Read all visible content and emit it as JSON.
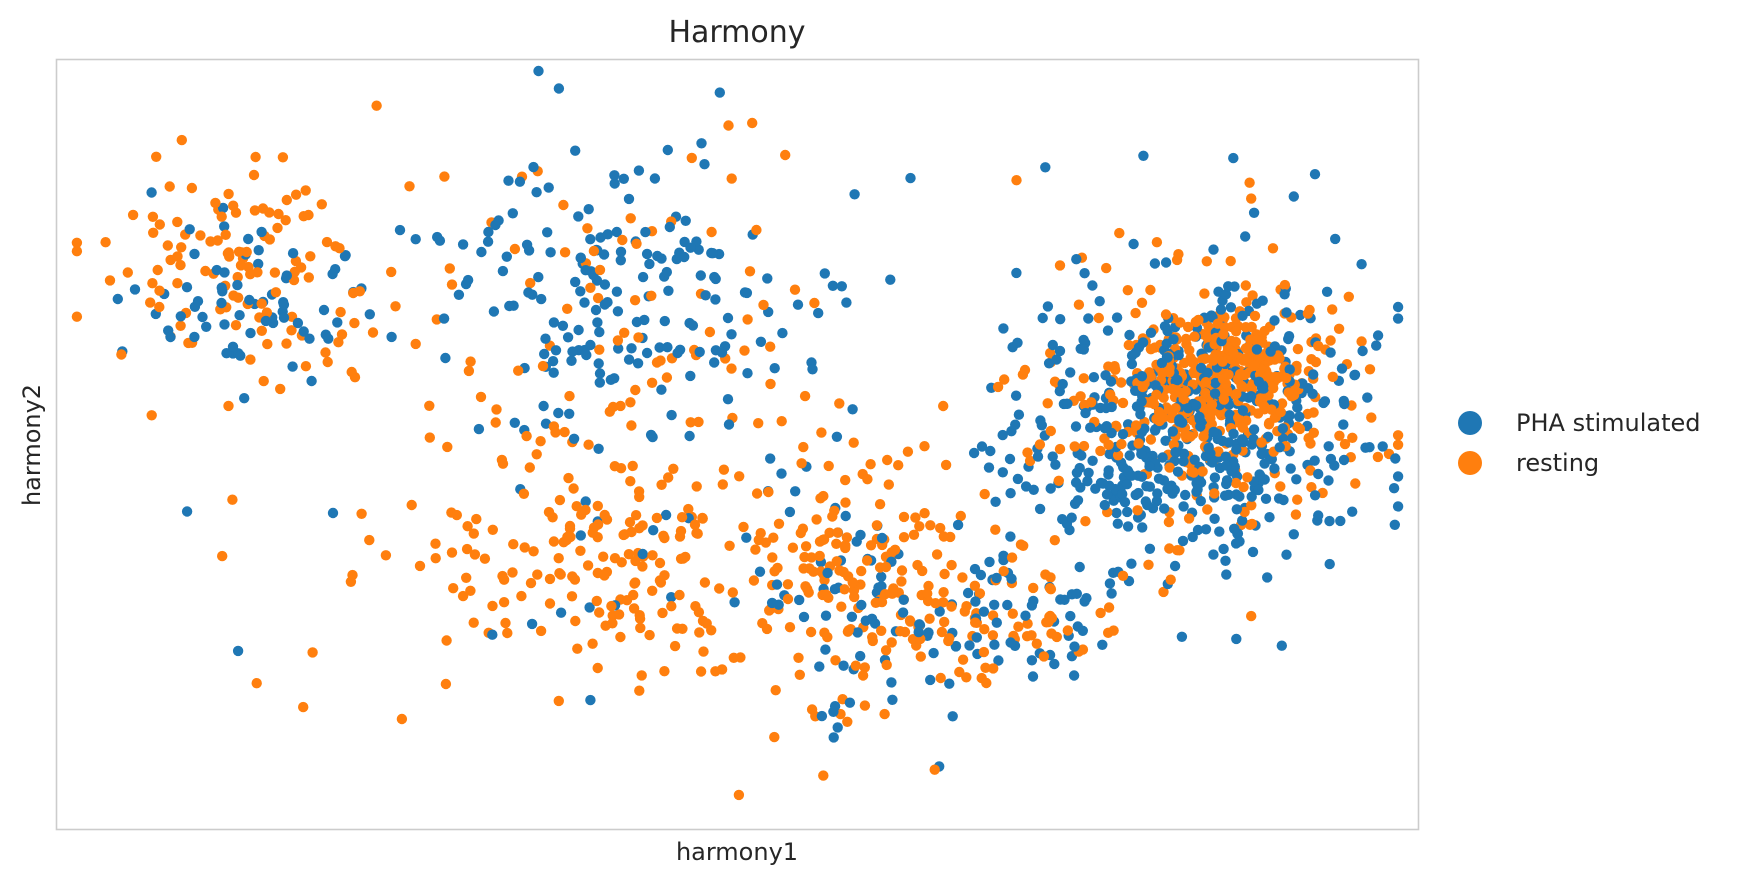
{
  "chart_data": {
    "type": "scatter",
    "title": "Harmony",
    "xlabel": "harmony1",
    "ylabel": "harmony2",
    "xlim": [
      0,
      1
    ],
    "ylim": [
      0,
      1
    ],
    "grid": false,
    "ticks_shown": false,
    "legend_placement": "right",
    "colors": {
      "PHA stimulated": "#1f77b4",
      "resting": "#ff7f0e",
      "frame": "#cccccc",
      "background": "#ffffff"
    },
    "clusters": [
      {
        "series": "PHA stimulated",
        "cx": 0.14,
        "cy": 0.69,
        "sx": 0.045,
        "sy": 0.06,
        "n": 70
      },
      {
        "series": "resting",
        "cx": 0.14,
        "cy": 0.72,
        "sx": 0.055,
        "sy": 0.065,
        "n": 110
      },
      {
        "series": "PHA stimulated",
        "cx": 0.41,
        "cy": 0.7,
        "sx": 0.065,
        "sy": 0.1,
        "n": 170
      },
      {
        "series": "resting",
        "cx": 0.4,
        "cy": 0.69,
        "sx": 0.07,
        "sy": 0.1,
        "n": 60
      },
      {
        "series": "resting",
        "cx": 0.4,
        "cy": 0.35,
        "sx": 0.055,
        "sy": 0.075,
        "n": 160
      },
      {
        "series": "PHA stimulated",
        "cx": 0.4,
        "cy": 0.36,
        "sx": 0.05,
        "sy": 0.06,
        "n": 12
      },
      {
        "series": "resting",
        "cx": 0.585,
        "cy": 0.32,
        "sx": 0.045,
        "sy": 0.075,
        "n": 170
      },
      {
        "series": "PHA stimulated",
        "cx": 0.58,
        "cy": 0.3,
        "sx": 0.04,
        "sy": 0.075,
        "n": 60
      },
      {
        "series": "PHA stimulated",
        "cx": 0.83,
        "cy": 0.53,
        "sx": 0.065,
        "sy": 0.09,
        "n": 540
      },
      {
        "series": "resting",
        "cx": 0.855,
        "cy": 0.59,
        "sx": 0.035,
        "sy": 0.045,
        "n": 260
      },
      {
        "series": "resting",
        "cx": 0.84,
        "cy": 0.55,
        "sx": 0.065,
        "sy": 0.09,
        "n": 230
      },
      {
        "series": "PHA stimulated",
        "cx": 0.7,
        "cy": 0.27,
        "sx": 0.04,
        "sy": 0.035,
        "n": 60
      },
      {
        "series": "resting",
        "cx": 0.7,
        "cy": 0.26,
        "sx": 0.04,
        "sy": 0.045,
        "n": 60
      },
      {
        "series": "resting",
        "cx": 0.45,
        "cy": 0.5,
        "sx": 0.21,
        "sy": 0.18,
        "n": 70
      },
      {
        "series": "PHA stimulated",
        "cx": 0.45,
        "cy": 0.56,
        "sx": 0.21,
        "sy": 0.14,
        "n": 30
      }
    ],
    "series": [
      {
        "name": "PHA stimulated",
        "color": "#1f77b4",
        "x": [
          0.045,
          0.487,
          0.586,
          0.627,
          0.726,
          0.798,
          0.864,
          0.924,
          0.953,
          0.203,
          0.392,
          0.32,
          0.658,
          0.529,
          0.573
        ],
        "y": [
          0.689,
          0.957,
          0.825,
          0.846,
          0.86,
          0.875,
          0.872,
          0.851,
          0.59,
          0.411,
          0.168,
          0.253,
          0.147,
          0.318,
          0.51
        ]
      },
      {
        "name": "resting",
        "color": "#ff7f0e",
        "x": [
          0.235,
          0.071,
          0.145,
          0.183,
          0.481,
          0.524,
          0.651,
          0.722,
          0.876,
          0.147,
          0.188,
          0.501,
          0.563,
          0.527,
          0.327,
          0.224
        ],
        "y": [
          0.94,
          0.775,
          0.85,
          0.83,
          0.776,
          0.627,
          0.55,
          0.5,
          0.84,
          0.19,
          0.23,
          0.045,
          0.07,
          0.12,
          0.48,
          0.41
        ]
      }
    ],
    "legend": [
      {
        "label": "PHA stimulated",
        "color": "#1f77b4"
      },
      {
        "label": "resting",
        "color": "#ff7f0e"
      }
    ]
  }
}
